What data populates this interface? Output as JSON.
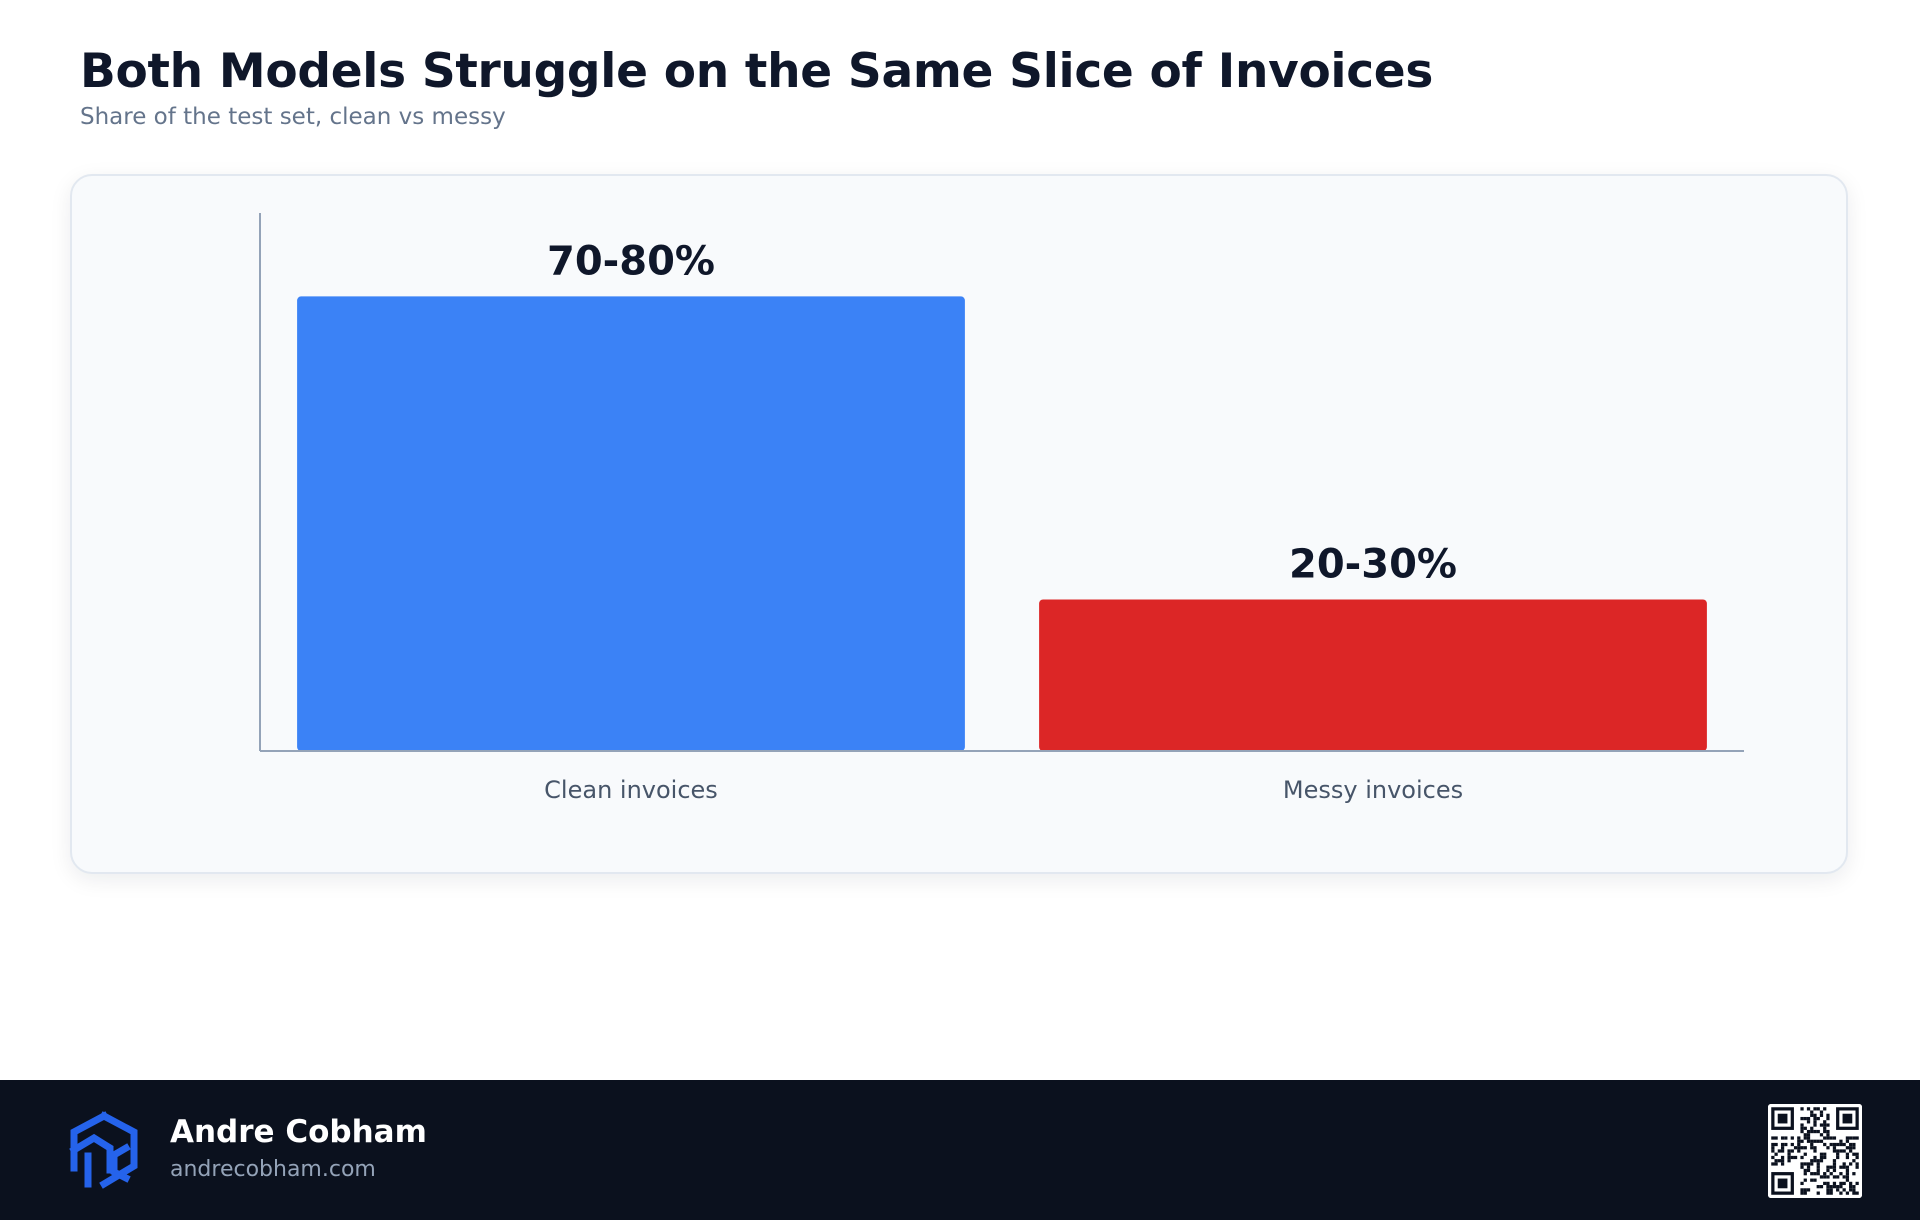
{
  "title": "Both Models Struggle on the Same Slice of Invoices",
  "subtitle": "Share of the test set, clean vs messy",
  "chart_data": {
    "type": "bar",
    "categories": [
      "Clean invoices",
      "Messy invoices"
    ],
    "values": [
      75,
      25
    ],
    "value_ranges": [
      [
        70,
        80
      ],
      [
        20,
        30
      ]
    ],
    "data_labels": [
      "70-80%",
      "20-30%"
    ],
    "colors": [
      "#3b82f6",
      "#dc2626"
    ],
    "ylim": [
      0,
      82
    ],
    "grid": false,
    "xlabel": "",
    "ylabel": ""
  },
  "footer": {
    "name": "Andre Cobham",
    "website": "andrecobham.com",
    "logo_icon": "ac-cube-logo-icon",
    "qr_icon": "qr-code-icon",
    "background": "#0b111e",
    "logo_color": "#2563eb"
  }
}
